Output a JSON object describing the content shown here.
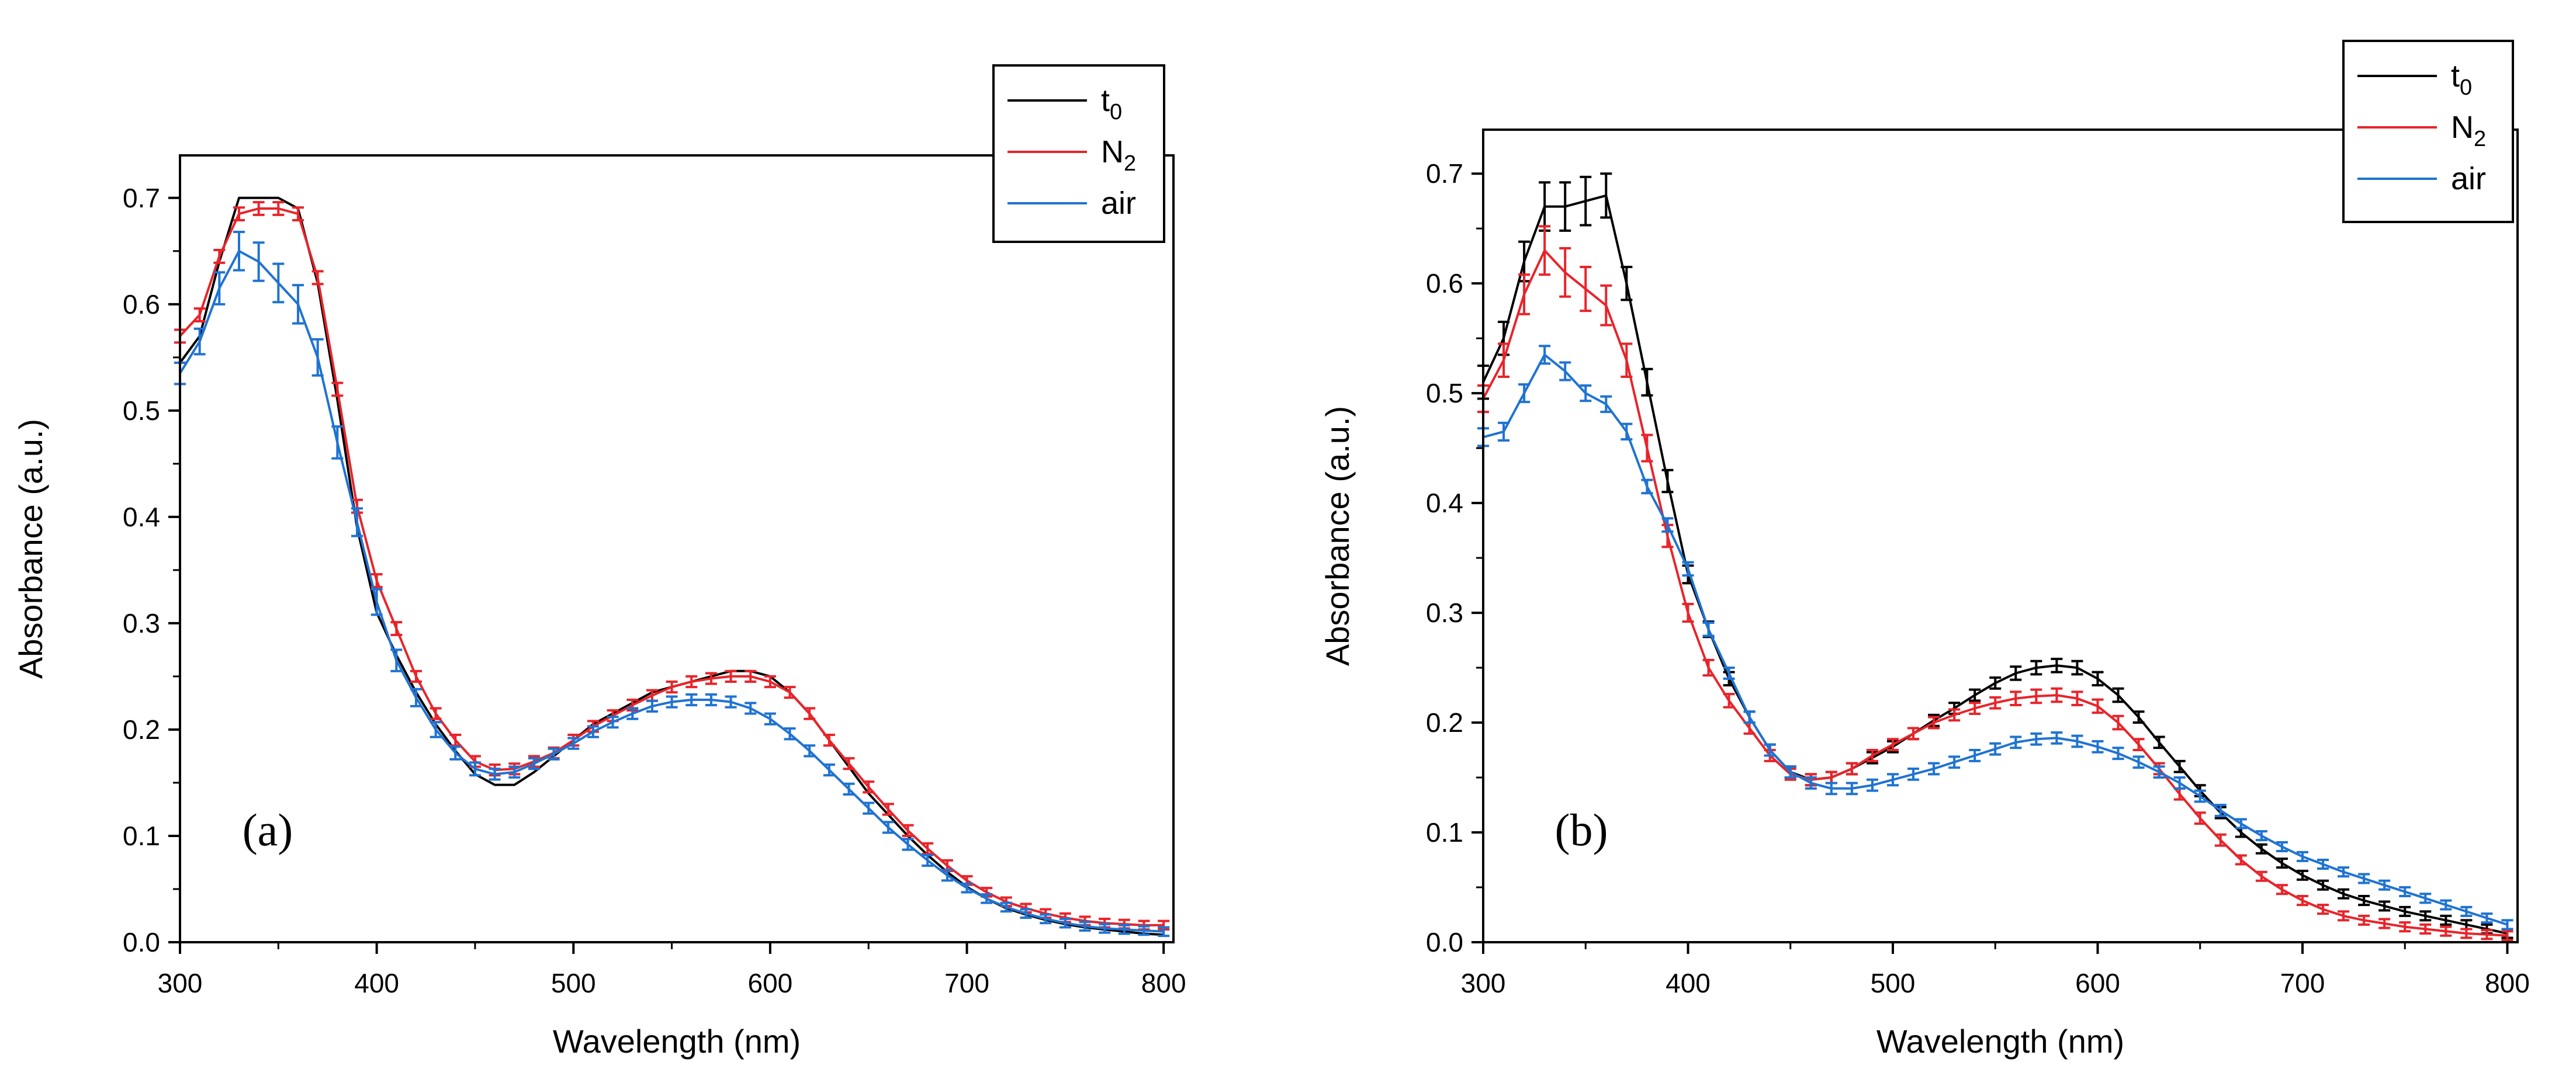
{
  "colors": {
    "t0": "#000000",
    "n2": "#e8242a",
    "air": "#1f73d2",
    "axis": "#000000"
  },
  "chart_data": [
    {
      "type": "line",
      "panel_label": "a",
      "panel_label_text": "(a)",
      "title": "",
      "xlabel": "Wavelength (nm)",
      "ylabel": "Absorbance (a.u.)",
      "xlim": [
        300,
        805
      ],
      "ylim": [
        0,
        0.74
      ],
      "xticks": [
        "300",
        "400",
        "500",
        "600",
        "700",
        "800"
      ],
      "yticks": [
        "0.0",
        "0.1",
        "0.2",
        "0.3",
        "0.4",
        "0.5",
        "0.6",
        "0.7"
      ],
      "legend": [
        {
          "label": "t",
          "sub": "0"
        },
        {
          "label": "N",
          "sub": "2"
        },
        {
          "label": "air",
          "sub": ""
        }
      ],
      "legend_position": "top-right",
      "x": [
        300,
        310,
        320,
        330,
        340,
        350,
        360,
        370,
        380,
        390,
        400,
        410,
        420,
        430,
        440,
        450,
        460,
        470,
        480,
        490,
        500,
        510,
        520,
        530,
        540,
        550,
        560,
        570,
        580,
        590,
        600,
        610,
        620,
        630,
        640,
        650,
        660,
        670,
        680,
        690,
        700,
        710,
        720,
        730,
        740,
        750,
        760,
        770,
        780,
        790,
        800
      ],
      "series": [
        {
          "name": "t0",
          "values": [
            0.545,
            0.57,
            0.64,
            0.7,
            0.7,
            0.7,
            0.69,
            0.62,
            0.51,
            0.39,
            0.31,
            0.27,
            0.235,
            0.205,
            0.18,
            0.158,
            0.148,
            0.148,
            0.16,
            0.175,
            0.19,
            0.205,
            0.215,
            0.225,
            0.235,
            0.24,
            0.245,
            0.25,
            0.255,
            0.255,
            0.25,
            0.235,
            0.215,
            0.19,
            0.165,
            0.14,
            0.12,
            0.1,
            0.082,
            0.066,
            0.052,
            0.041,
            0.032,
            0.026,
            0.021,
            0.017,
            0.014,
            0.012,
            0.01,
            0.008,
            0.007
          ],
          "errors": []
        },
        {
          "name": "N2",
          "values": [
            0.57,
            0.59,
            0.645,
            0.685,
            0.69,
            0.69,
            0.685,
            0.625,
            0.52,
            0.41,
            0.34,
            0.295,
            0.25,
            0.215,
            0.19,
            0.17,
            0.162,
            0.163,
            0.17,
            0.178,
            0.19,
            0.203,
            0.213,
            0.223,
            0.232,
            0.24,
            0.245,
            0.248,
            0.25,
            0.25,
            0.245,
            0.235,
            0.215,
            0.19,
            0.168,
            0.146,
            0.125,
            0.105,
            0.088,
            0.072,
            0.058,
            0.047,
            0.038,
            0.032,
            0.027,
            0.023,
            0.02,
            0.018,
            0.017,
            0.016,
            0.016
          ],
          "errors": [
            0.006,
            0.006,
            0.006,
            0.006,
            0.006,
            0.006,
            0.006,
            0.006,
            0.006,
            0.006,
            0.006,
            0.006,
            0.005,
            0.005,
            0.005,
            0.005,
            0.005,
            0.005,
            0.005,
            0.005,
            0.005,
            0.005,
            0.005,
            0.005,
            0.005,
            0.005,
            0.005,
            0.005,
            0.005,
            0.005,
            0.005,
            0.005,
            0.005,
            0.005,
            0.005,
            0.005,
            0.005,
            0.005,
            0.005,
            0.005,
            0.004,
            0.004,
            0.004,
            0.004,
            0.004,
            0.004,
            0.004,
            0.004,
            0.004,
            0.004,
            0.004
          ]
        },
        {
          "name": "air",
          "values": [
            0.535,
            0.565,
            0.615,
            0.65,
            0.64,
            0.62,
            0.6,
            0.55,
            0.47,
            0.395,
            0.32,
            0.265,
            0.23,
            0.2,
            0.178,
            0.163,
            0.158,
            0.16,
            0.168,
            0.177,
            0.187,
            0.198,
            0.207,
            0.215,
            0.222,
            0.226,
            0.228,
            0.228,
            0.226,
            0.22,
            0.21,
            0.196,
            0.18,
            0.162,
            0.144,
            0.126,
            0.108,
            0.092,
            0.077,
            0.063,
            0.051,
            0.041,
            0.033,
            0.027,
            0.022,
            0.018,
            0.015,
            0.013,
            0.012,
            0.011,
            0.01
          ],
          "errors": [
            0.01,
            0.012,
            0.015,
            0.018,
            0.018,
            0.018,
            0.018,
            0.017,
            0.015,
            0.013,
            0.012,
            0.01,
            0.008,
            0.007,
            0.006,
            0.006,
            0.005,
            0.005,
            0.005,
            0.005,
            0.005,
            0.005,
            0.005,
            0.005,
            0.005,
            0.005,
            0.005,
            0.005,
            0.005,
            0.005,
            0.005,
            0.005,
            0.005,
            0.005,
            0.005,
            0.005,
            0.005,
            0.005,
            0.005,
            0.005,
            0.004,
            0.004,
            0.004,
            0.004,
            0.004,
            0.004,
            0.004,
            0.004,
            0.004,
            0.004,
            0.004
          ]
        }
      ]
    },
    {
      "type": "line",
      "panel_label": "b",
      "panel_label_text": "(b)",
      "title": "",
      "xlabel": "Wavelength (nm)",
      "ylabel": "Absorbance (a.u.)",
      "xlim": [
        300,
        805
      ],
      "ylim": [
        0,
        0.74
      ],
      "xticks": [
        "300",
        "400",
        "500",
        "600",
        "700",
        "800"
      ],
      "yticks": [
        "0.0",
        "0.1",
        "0.2",
        "0.3",
        "0.4",
        "0.5",
        "0.6",
        "0.7"
      ],
      "legend": [
        {
          "label": "t",
          "sub": "0"
        },
        {
          "label": "N",
          "sub": "2"
        },
        {
          "label": "air",
          "sub": ""
        }
      ],
      "legend_position": "top-right",
      "x": [
        300,
        310,
        320,
        330,
        340,
        350,
        360,
        370,
        380,
        390,
        400,
        410,
        420,
        430,
        440,
        450,
        460,
        470,
        480,
        490,
        500,
        510,
        520,
        530,
        540,
        550,
        560,
        570,
        580,
        590,
        600,
        610,
        620,
        630,
        640,
        650,
        660,
        670,
        680,
        690,
        700,
        710,
        720,
        730,
        740,
        750,
        760,
        770,
        780,
        790,
        800
      ],
      "series": [
        {
          "name": "t0",
          "values": [
            0.51,
            0.55,
            0.62,
            0.67,
            0.67,
            0.675,
            0.68,
            0.6,
            0.51,
            0.42,
            0.335,
            0.285,
            0.24,
            0.205,
            0.175,
            0.155,
            0.148,
            0.15,
            0.158,
            0.168,
            0.178,
            0.19,
            0.202,
            0.213,
            0.225,
            0.236,
            0.245,
            0.25,
            0.252,
            0.25,
            0.24,
            0.225,
            0.205,
            0.182,
            0.16,
            0.138,
            0.118,
            0.1,
            0.085,
            0.072,
            0.061,
            0.052,
            0.044,
            0.038,
            0.033,
            0.028,
            0.024,
            0.02,
            0.016,
            0.012,
            0.008
          ],
          "errors": [
            0.015,
            0.015,
            0.018,
            0.022,
            0.022,
            0.022,
            0.02,
            0.015,
            0.012,
            0.01,
            0.008,
            0.007,
            0.006,
            0.005,
            0.005,
            0.005,
            0.005,
            0.005,
            0.005,
            0.005,
            0.005,
            0.005,
            0.005,
            0.005,
            0.005,
            0.005,
            0.006,
            0.006,
            0.006,
            0.006,
            0.006,
            0.006,
            0.005,
            0.005,
            0.005,
            0.005,
            0.005,
            0.004,
            0.004,
            0.004,
            0.004,
            0.004,
            0.004,
            0.004,
            0.004,
            0.004,
            0.004,
            0.004,
            0.004,
            0.004,
            0.004
          ]
        },
        {
          "name": "N2",
          "values": [
            0.495,
            0.53,
            0.59,
            0.63,
            0.61,
            0.595,
            0.58,
            0.53,
            0.45,
            0.37,
            0.3,
            0.25,
            0.22,
            0.195,
            0.17,
            0.153,
            0.148,
            0.15,
            0.158,
            0.17,
            0.18,
            0.19,
            0.2,
            0.207,
            0.213,
            0.218,
            0.222,
            0.224,
            0.225,
            0.222,
            0.215,
            0.2,
            0.18,
            0.158,
            0.135,
            0.113,
            0.093,
            0.075,
            0.06,
            0.048,
            0.038,
            0.03,
            0.024,
            0.02,
            0.017,
            0.014,
            0.012,
            0.01,
            0.008,
            0.007,
            0.006
          ],
          "errors": [
            0.012,
            0.015,
            0.018,
            0.022,
            0.022,
            0.02,
            0.018,
            0.015,
            0.012,
            0.01,
            0.008,
            0.007,
            0.006,
            0.005,
            0.005,
            0.005,
            0.005,
            0.005,
            0.005,
            0.005,
            0.005,
            0.005,
            0.005,
            0.005,
            0.005,
            0.005,
            0.006,
            0.006,
            0.006,
            0.006,
            0.006,
            0.006,
            0.005,
            0.005,
            0.005,
            0.005,
            0.005,
            0.004,
            0.004,
            0.004,
            0.004,
            0.004,
            0.004,
            0.004,
            0.004,
            0.004,
            0.004,
            0.004,
            0.004,
            0.004,
            0.004
          ]
        },
        {
          "name": "air",
          "values": [
            0.46,
            0.465,
            0.5,
            0.535,
            0.52,
            0.5,
            0.49,
            0.465,
            0.415,
            0.38,
            0.34,
            0.285,
            0.245,
            0.205,
            0.175,
            0.155,
            0.145,
            0.14,
            0.14,
            0.143,
            0.148,
            0.153,
            0.158,
            0.164,
            0.17,
            0.176,
            0.182,
            0.185,
            0.186,
            0.183,
            0.178,
            0.172,
            0.164,
            0.155,
            0.145,
            0.133,
            0.12,
            0.108,
            0.097,
            0.087,
            0.078,
            0.071,
            0.064,
            0.058,
            0.052,
            0.046,
            0.04,
            0.034,
            0.028,
            0.022,
            0.016
          ],
          "errors": [
            0.008,
            0.008,
            0.008,
            0.008,
            0.008,
            0.007,
            0.007,
            0.007,
            0.006,
            0.006,
            0.006,
            0.006,
            0.005,
            0.005,
            0.005,
            0.005,
            0.005,
            0.005,
            0.005,
            0.005,
            0.005,
            0.005,
            0.005,
            0.005,
            0.005,
            0.005,
            0.005,
            0.005,
            0.005,
            0.005,
            0.005,
            0.005,
            0.005,
            0.005,
            0.005,
            0.005,
            0.005,
            0.004,
            0.004,
            0.004,
            0.004,
            0.004,
            0.004,
            0.004,
            0.004,
            0.004,
            0.004,
            0.004,
            0.004,
            0.004,
            0.004
          ]
        }
      ]
    }
  ]
}
